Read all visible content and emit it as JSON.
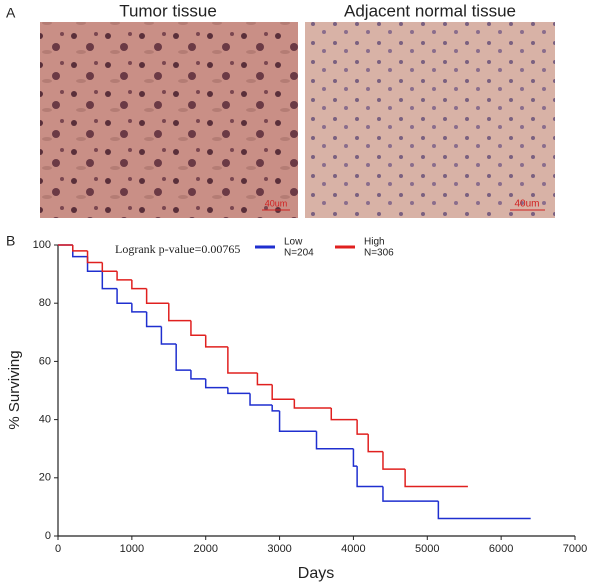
{
  "panel_a": {
    "label": "A",
    "left_title": "Tumor tissue",
    "right_title": "Adjacent normal tissue",
    "left_scale": "40um",
    "right_scale": "40um"
  },
  "chart_data": {
    "type": "step",
    "panel_label": "B",
    "annotation": "Logrank p-value=0.00765",
    "x_label": "Days",
    "y_label": "% Surviving",
    "xlim": [
      0,
      7000
    ],
    "xticks": [
      0,
      1000,
      2000,
      3000,
      4000,
      5000,
      6000,
      7000
    ],
    "ylim": [
      0,
      100
    ],
    "yticks": [
      0,
      20,
      40,
      60,
      80,
      100
    ],
    "series": [
      {
        "name": "Low",
        "n_label": "N=204",
        "color": "#1f2fcf",
        "x": [
          0,
          200,
          400,
          600,
          800,
          1000,
          1200,
          1400,
          1600,
          1800,
          2000,
          2300,
          2600,
          2900,
          3000,
          3500,
          4000,
          4050,
          4400,
          5150,
          6400
        ],
        "values": [
          100,
          96,
          91,
          85,
          80,
          77,
          72,
          66,
          57,
          54,
          51,
          49,
          45,
          43,
          36,
          30,
          24,
          17,
          12,
          6,
          6
        ]
      },
      {
        "name": "High",
        "n_label": "N=306",
        "color": "#e0201f",
        "x": [
          0,
          200,
          400,
          600,
          800,
          1000,
          1200,
          1500,
          1800,
          2000,
          2300,
          2700,
          2900,
          3200,
          3700,
          4050,
          4200,
          4400,
          4700,
          5550
        ],
        "values": [
          100,
          98,
          94,
          91,
          88,
          85,
          80,
          74,
          69,
          65,
          56,
          52,
          47,
          44,
          40,
          35,
          29,
          23,
          17,
          17
        ]
      }
    ]
  }
}
